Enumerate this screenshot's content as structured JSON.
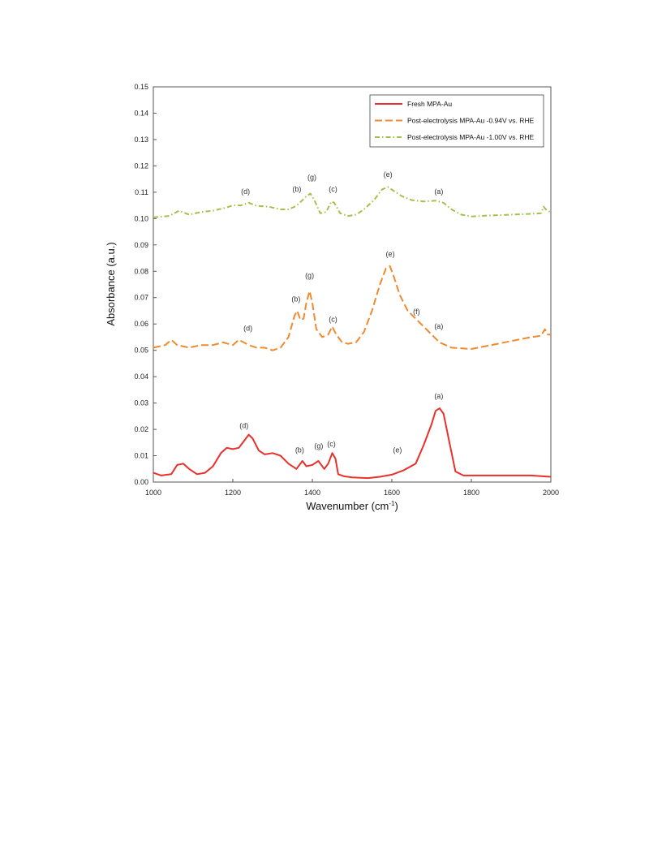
{
  "chart_data": {
    "type": "line",
    "xlabel": "Wavenumber (cm",
    "xlabel_sup": "-1",
    "xlabel_close": ")",
    "ylabel": "Absorbance (a.u.)",
    "xlim": [
      1000,
      2000
    ],
    "ylim": [
      0.0,
      0.15
    ],
    "grid": false,
    "legend_position": "top-right",
    "x_ticks": [
      "1000",
      "1200",
      "1400",
      "1600",
      "1800",
      "2000"
    ],
    "y_ticks": [
      "0.00",
      "0.01",
      "0.02",
      "0.03",
      "0.04",
      "0.05",
      "0.06",
      "0.07",
      "0.08",
      "0.09",
      "0.10",
      "0.11",
      "0.12",
      "0.13",
      "0.14",
      "0.15"
    ],
    "series": [
      {
        "name": "Fresh MPA-Au",
        "color": "#e8312a",
        "dash": "solid",
        "points": [
          [
            1000,
            0.0035
          ],
          [
            1020,
            0.0025
          ],
          [
            1045,
            0.003
          ],
          [
            1060,
            0.0065
          ],
          [
            1075,
            0.007
          ],
          [
            1090,
            0.005
          ],
          [
            1110,
            0.003
          ],
          [
            1130,
            0.0035
          ],
          [
            1150,
            0.006
          ],
          [
            1170,
            0.011
          ],
          [
            1185,
            0.013
          ],
          [
            1200,
            0.0125
          ],
          [
            1215,
            0.013
          ],
          [
            1230,
            0.016
          ],
          [
            1240,
            0.018
          ],
          [
            1250,
            0.0165
          ],
          [
            1265,
            0.012
          ],
          [
            1280,
            0.0105
          ],
          [
            1300,
            0.011
          ],
          [
            1320,
            0.01
          ],
          [
            1340,
            0.007
          ],
          [
            1360,
            0.005
          ],
          [
            1375,
            0.008
          ],
          [
            1385,
            0.006
          ],
          [
            1400,
            0.0065
          ],
          [
            1415,
            0.008
          ],
          [
            1430,
            0.005
          ],
          [
            1440,
            0.007
          ],
          [
            1450,
            0.011
          ],
          [
            1458,
            0.009
          ],
          [
            1465,
            0.003
          ],
          [
            1480,
            0.0022
          ],
          [
            1500,
            0.0018
          ],
          [
            1540,
            0.0015
          ],
          [
            1570,
            0.002
          ],
          [
            1600,
            0.0028
          ],
          [
            1630,
            0.0045
          ],
          [
            1660,
            0.007
          ],
          [
            1680,
            0.014
          ],
          [
            1700,
            0.022
          ],
          [
            1710,
            0.027
          ],
          [
            1720,
            0.028
          ],
          [
            1730,
            0.026
          ],
          [
            1745,
            0.015
          ],
          [
            1760,
            0.004
          ],
          [
            1780,
            0.0025
          ],
          [
            1800,
            0.0025
          ],
          [
            1850,
            0.0025
          ],
          [
            1900,
            0.0025
          ],
          [
            1950,
            0.0025
          ],
          [
            1980,
            0.0022
          ],
          [
            2000,
            0.002
          ]
        ]
      },
      {
        "name": "Post-electrolysis MPA-Au -0.94V vs. RHE",
        "color": "#f08a2e",
        "dash": "long",
        "points": [
          [
            1000,
            0.051
          ],
          [
            1030,
            0.052
          ],
          [
            1045,
            0.054
          ],
          [
            1060,
            0.052
          ],
          [
            1090,
            0.051
          ],
          [
            1120,
            0.052
          ],
          [
            1150,
            0.052
          ],
          [
            1175,
            0.053
          ],
          [
            1200,
            0.052
          ],
          [
            1215,
            0.054
          ],
          [
            1240,
            0.052
          ],
          [
            1260,
            0.051
          ],
          [
            1280,
            0.051
          ],
          [
            1300,
            0.05
          ],
          [
            1320,
            0.051
          ],
          [
            1340,
            0.055
          ],
          [
            1355,
            0.063
          ],
          [
            1362,
            0.065
          ],
          [
            1370,
            0.0615
          ],
          [
            1378,
            0.062
          ],
          [
            1385,
            0.068
          ],
          [
            1393,
            0.0725
          ],
          [
            1400,
            0.068
          ],
          [
            1410,
            0.058
          ],
          [
            1425,
            0.055
          ],
          [
            1440,
            0.056
          ],
          [
            1450,
            0.059
          ],
          [
            1460,
            0.056
          ],
          [
            1475,
            0.053
          ],
          [
            1490,
            0.0525
          ],
          [
            1510,
            0.053
          ],
          [
            1530,
            0.057
          ],
          [
            1550,
            0.065
          ],
          [
            1570,
            0.075
          ],
          [
            1585,
            0.081
          ],
          [
            1595,
            0.082
          ],
          [
            1605,
            0.078
          ],
          [
            1620,
            0.071
          ],
          [
            1640,
            0.065
          ],
          [
            1660,
            0.062
          ],
          [
            1680,
            0.059
          ],
          [
            1700,
            0.056
          ],
          [
            1720,
            0.053
          ],
          [
            1750,
            0.051
          ],
          [
            1800,
            0.0505
          ],
          [
            1850,
            0.052
          ],
          [
            1900,
            0.0535
          ],
          [
            1950,
            0.055
          ],
          [
            1975,
            0.0555
          ],
          [
            1985,
            0.058
          ],
          [
            1992,
            0.056
          ],
          [
            2000,
            0.056
          ]
        ]
      },
      {
        "name": "Post-electrolysis MPA-Au  -1.00V vs. RHE",
        "color": "#a2c14a",
        "dash": "dashdot",
        "points": [
          [
            1000,
            0.1005
          ],
          [
            1040,
            0.101
          ],
          [
            1065,
            0.103
          ],
          [
            1090,
            0.1015
          ],
          [
            1120,
            0.1025
          ],
          [
            1150,
            0.103
          ],
          [
            1180,
            0.104
          ],
          [
            1200,
            0.105
          ],
          [
            1220,
            0.105
          ],
          [
            1240,
            0.106
          ],
          [
            1260,
            0.1048
          ],
          [
            1290,
            0.1045
          ],
          [
            1320,
            0.1035
          ],
          [
            1340,
            0.1035
          ],
          [
            1360,
            0.1048
          ],
          [
            1375,
            0.107
          ],
          [
            1385,
            0.1085
          ],
          [
            1395,
            0.1095
          ],
          [
            1405,
            0.107
          ],
          [
            1420,
            0.102
          ],
          [
            1435,
            0.1025
          ],
          [
            1448,
            0.1065
          ],
          [
            1455,
            0.106
          ],
          [
            1470,
            0.102
          ],
          [
            1490,
            0.101
          ],
          [
            1510,
            0.1015
          ],
          [
            1530,
            0.1035
          ],
          [
            1555,
            0.107
          ],
          [
            1575,
            0.111
          ],
          [
            1590,
            0.112
          ],
          [
            1605,
            0.1105
          ],
          [
            1625,
            0.1085
          ],
          [
            1650,
            0.107
          ],
          [
            1680,
            0.1065
          ],
          [
            1710,
            0.1068
          ],
          [
            1730,
            0.106
          ],
          [
            1750,
            0.1035
          ],
          [
            1775,
            0.1015
          ],
          [
            1800,
            0.1008
          ],
          [
            1850,
            0.1012
          ],
          [
            1900,
            0.1015
          ],
          [
            1950,
            0.1018
          ],
          [
            1975,
            0.102
          ],
          [
            1982,
            0.1045
          ],
          [
            1990,
            0.103
          ],
          [
            2000,
            0.1025
          ]
        ]
      }
    ],
    "annotations": [
      {
        "text": "(d)",
        "x": 1228,
        "y": 0.0205
      },
      {
        "text": "(b)",
        "x": 1368,
        "y": 0.0113
      },
      {
        "text": "(g)",
        "x": 1416,
        "y": 0.0128
      },
      {
        "text": "(c)",
        "x": 1448,
        "y": 0.0135
      },
      {
        "text": "(e)",
        "x": 1614,
        "y": 0.0112
      },
      {
        "text": "(a)",
        "x": 1718,
        "y": 0.0317
      },
      {
        "text": "(d)",
        "x": 1238,
        "y": 0.0575
      },
      {
        "text": "(b)",
        "x": 1359,
        "y": 0.0685
      },
      {
        "text": "(g)",
        "x": 1393,
        "y": 0.0775
      },
      {
        "text": "(c)",
        "x": 1452,
        "y": 0.0608
      },
      {
        "text": "(e)",
        "x": 1596,
        "y": 0.0857
      },
      {
        "text": "(f)",
        "x": 1662,
        "y": 0.0638
      },
      {
        "text": "(a)",
        "x": 1718,
        "y": 0.0582
      },
      {
        "text": "(d)",
        "x": 1232,
        "y": 0.1093
      },
      {
        "text": "(b)",
        "x": 1361,
        "y": 0.1103
      },
      {
        "text": "(g)",
        "x": 1399,
        "y": 0.1148
      },
      {
        "text": "(c)",
        "x": 1452,
        "y": 0.1103
      },
      {
        "text": "(e)",
        "x": 1590,
        "y": 0.1158
      },
      {
        "text": "(a)",
        "x": 1718,
        "y": 0.1093
      }
    ]
  }
}
